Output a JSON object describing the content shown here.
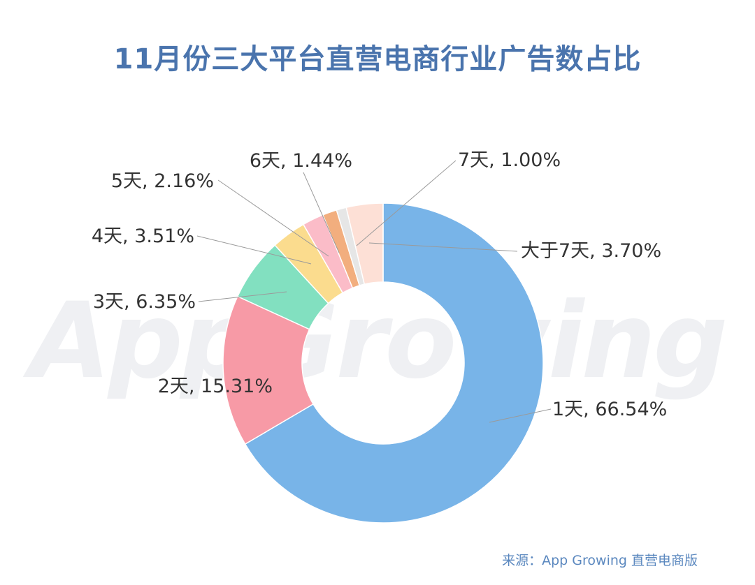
{
  "title": "11月份三大平台直营电商行业广告数占比",
  "source": "来源：App Growing 直营电商版",
  "watermark": "AppGrowing",
  "chart_data": {
    "type": "pie",
    "title": "11月份三大平台直营电商行业广告数占比",
    "donut": true,
    "series": [
      {
        "name": "1天",
        "value": 66.54,
        "label": "1天, 66.54%",
        "color": "#78b4e8"
      },
      {
        "name": "2天",
        "value": 15.31,
        "label": "2天, 15.31%",
        "color": "#f79aa6"
      },
      {
        "name": "3天",
        "value": 6.35,
        "label": "3天, 6.35%",
        "color": "#82e0c0"
      },
      {
        "name": "4天",
        "value": 3.51,
        "label": "4天, 3.51%",
        "color": "#fbdc8e"
      },
      {
        "name": "5天",
        "value": 2.16,
        "label": "5天, 2.16%",
        "color": "#fbbcc8"
      },
      {
        "name": "6天",
        "value": 1.44,
        "label": "6天, 1.44%",
        "color": "#f2ae7e"
      },
      {
        "name": "7天",
        "value": 1.0,
        "label": "7天, 1.00%",
        "color": "#e6e6e6"
      },
      {
        "name": "大于7天",
        "value": 3.7,
        "label": "大于7天, 3.70%",
        "color": "#fde0d6"
      }
    ]
  }
}
